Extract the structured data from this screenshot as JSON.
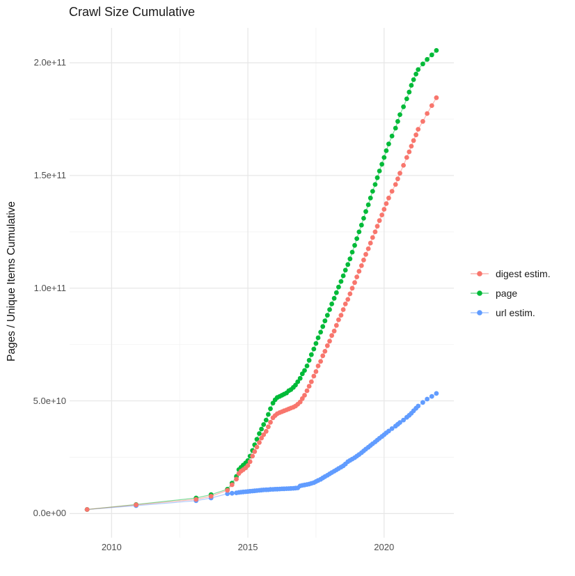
{
  "chart_data": {
    "type": "line",
    "title": "Crawl Size Cumulative",
    "xlabel": "",
    "ylabel": "Pages / Unique Items Cumulative",
    "legend_position": "right",
    "grid": "major+minor",
    "xlim": [
      2008.46,
      2022.56
    ],
    "ylim": [
      -10700000000.0,
      215500000000.0
    ],
    "x_ticks": {
      "major": [
        2010,
        2015,
        2020
      ],
      "minor": [
        2012.5,
        2017.5
      ],
      "labels": [
        "2010",
        "2015",
        "2020"
      ]
    },
    "y_ticks": {
      "major": [
        0,
        50000000000.0,
        100000000000.0,
        150000000000.0,
        200000000000.0
      ],
      "minor": [
        25000000000.0,
        75000000000.0,
        125000000000.0,
        175000000000.0
      ],
      "labels": [
        "0.0e+00",
        "5.0e+10",
        "1.0e+11",
        "1.5e+11",
        "2.0e+11"
      ]
    },
    "y_unit_note": "series y values are in billions (1e9) of pages / unique items, cumulative",
    "x_unit_note": "decimal year of crawl",
    "x": [
      2009.1,
      2010.9,
      2013.1,
      2013.65,
      2014.25,
      2014.42,
      2014.58,
      2014.67,
      2014.75,
      2014.83,
      2014.92,
      2015.0,
      2015.08,
      2015.17,
      2015.25,
      2015.33,
      2015.42,
      2015.5,
      2015.58,
      2015.67,
      2015.75,
      2015.83,
      2015.92,
      2016.0,
      2016.08,
      2016.17,
      2016.25,
      2016.33,
      2016.42,
      2016.5,
      2016.58,
      2016.67,
      2016.75,
      2016.83,
      2016.92,
      2017.0,
      2017.08,
      2017.17,
      2017.25,
      2017.33,
      2017.42,
      2017.5,
      2017.58,
      2017.67,
      2017.75,
      2017.83,
      2017.92,
      2018.0,
      2018.08,
      2018.17,
      2018.25,
      2018.33,
      2018.42,
      2018.5,
      2018.58,
      2018.67,
      2018.75,
      2018.83,
      2018.92,
      2019.0,
      2019.08,
      2019.17,
      2019.25,
      2019.33,
      2019.42,
      2019.5,
      2019.58,
      2019.67,
      2019.75,
      2019.83,
      2019.92,
      2020.0,
      2020.08,
      2020.17,
      2020.29,
      2020.42,
      2020.5,
      2020.58,
      2020.71,
      2020.83,
      2020.92,
      2021.0,
      2021.08,
      2021.17,
      2021.25,
      2021.42,
      2021.58,
      2021.75,
      2021.92
    ],
    "series": [
      {
        "name": "digest estim.",
        "color": "#F8766D",
        "y_billions": [
          1.8,
          3.9,
          6.3,
          7.7,
          10.3,
          12.8,
          15.3,
          17.8,
          18.8,
          19.5,
          20.3,
          21.3,
          23.0,
          25.5,
          27.5,
          29.5,
          31.5,
          33.5,
          35.0,
          36.5,
          38.5,
          40.5,
          42.5,
          43.5,
          44.3,
          44.8,
          45.2,
          45.6,
          46.0,
          46.4,
          46.8,
          47.2,
          47.7,
          48.5,
          49.5,
          51.0,
          52.5,
          54.5,
          56.5,
          58.5,
          61.0,
          63.0,
          65.5,
          67.5,
          70.0,
          72.0,
          74.5,
          76.5,
          79.0,
          81.0,
          83.5,
          86.0,
          88.0,
          90.5,
          93.0,
          95.0,
          97.5,
          100.0,
          102.5,
          105.0,
          107.5,
          110.0,
          112.5,
          115.0,
          117.5,
          120.0,
          122.5,
          125.0,
          127.5,
          130.0,
          132.5,
          135.0,
          137.5,
          140.0,
          143.0,
          146.0,
          148.5,
          151.0,
          154.5,
          158.0,
          160.5,
          163.0,
          165.5,
          168.0,
          170.5,
          174.0,
          177.5,
          181.0,
          184.5
        ]
      },
      {
        "name": "page",
        "color": "#00BA38",
        "y_billions": [
          1.8,
          4.0,
          6.9,
          8.4,
          10.8,
          13.5,
          16.5,
          19.5,
          20.5,
          21.5,
          22.5,
          23.5,
          25.5,
          28.0,
          30.5,
          33.0,
          35.5,
          37.5,
          39.5,
          41.5,
          44.0,
          46.5,
          49.0,
          50.5,
          51.5,
          52.0,
          52.5,
          53.0,
          53.5,
          54.5,
          55.0,
          56.0,
          57.0,
          58.5,
          60.0,
          62.0,
          63.5,
          65.5,
          68.0,
          70.5,
          73.0,
          75.5,
          78.0,
          80.5,
          83.0,
          85.5,
          88.0,
          90.5,
          93.0,
          95.5,
          98.0,
          100.5,
          103.0,
          105.5,
          108.0,
          110.5,
          113.0,
          116.0,
          119.0,
          122.0,
          125.0,
          128.0,
          131.0,
          134.0,
          137.0,
          140.0,
          143.0,
          146.0,
          149.0,
          152.0,
          155.0,
          158.0,
          161.0,
          164.0,
          167.5,
          171.0,
          174.0,
          177.0,
          180.5,
          184.0,
          187.0,
          190.0,
          192.5,
          195.0,
          197.0,
          199.5,
          201.5,
          203.5,
          205.5
        ]
      },
      {
        "name": "url estim.",
        "color": "#619CFF",
        "y_billions": [
          1.8,
          3.5,
          5.7,
          6.9,
          8.8,
          9.0,
          9.2,
          9.4,
          9.5,
          9.6,
          9.7,
          9.8,
          9.9,
          10.0,
          10.1,
          10.2,
          10.3,
          10.4,
          10.5,
          10.55,
          10.6,
          10.7,
          10.75,
          10.8,
          10.85,
          10.9,
          10.95,
          11.0,
          11.05,
          11.1,
          11.15,
          11.2,
          11.3,
          11.4,
          12.3,
          12.5,
          12.7,
          12.9,
          13.1,
          13.4,
          13.7,
          14.2,
          14.7,
          15.2,
          15.8,
          16.4,
          17.0,
          17.6,
          18.2,
          18.8,
          19.4,
          20.0,
          20.6,
          21.2,
          22.0,
          23.0,
          23.6,
          24.2,
          24.8,
          25.5,
          26.2,
          27.0,
          27.8,
          28.6,
          29.4,
          30.2,
          31.0,
          31.8,
          32.6,
          33.4,
          34.2,
          35.0,
          35.8,
          36.6,
          37.7,
          38.8,
          39.6,
          40.4,
          41.5,
          42.7,
          43.6,
          44.5,
          45.6,
          46.7,
          47.7,
          49.3,
          50.8,
          52.0,
          53.3
        ]
      }
    ]
  }
}
